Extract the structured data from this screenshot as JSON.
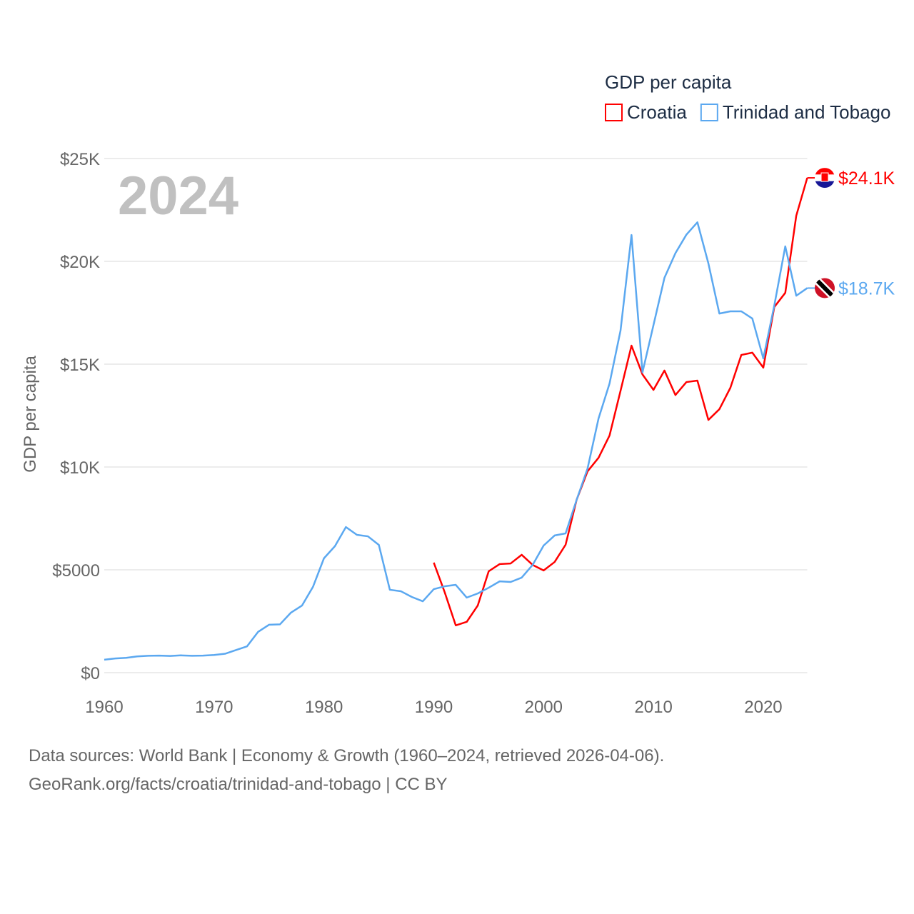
{
  "chart_data": {
    "type": "line",
    "title": "GDP per capita",
    "year_label": "2024",
    "ylabel": "GDP per capita",
    "xlabel": "",
    "xlim": [
      1960,
      2024
    ],
    "ylim": [
      0,
      25000
    ],
    "x_ticks": [
      1960,
      1970,
      1980,
      1990,
      2000,
      2010,
      2020
    ],
    "x_tick_labels": [
      "1960",
      "1970",
      "1980",
      "1990",
      "2000",
      "2010",
      "2020"
    ],
    "y_ticks": [
      0,
      5000,
      10000,
      15000,
      20000,
      25000
    ],
    "y_tick_labels": [
      "$0",
      "$5000",
      "$10K",
      "$15K",
      "$20K",
      "$25K"
    ],
    "grid": true,
    "legend_position": "top-right",
    "series": [
      {
        "name": "Croatia",
        "color": "#ff0000",
        "end_label": "$24.1K",
        "flag": "croatia-flag",
        "start_year": 1990,
        "values": [
          5350,
          3900,
          2300,
          2470,
          3260,
          4930,
          5280,
          5310,
          5730,
          5240,
          4970,
          5380,
          6220,
          8400,
          9790,
          10450,
          11530,
          13700,
          15900,
          14500,
          13750,
          14690,
          13500,
          14130,
          14200,
          12290,
          12810,
          13850,
          15450,
          15560,
          14830,
          17780,
          18470,
          22220,
          24060
        ]
      },
      {
        "name": "Trinidad and Tobago",
        "color": "#5ba8f0",
        "end_label": "$18.7K",
        "flag": "trinidad-flag",
        "start_year": 1960,
        "values": [
          630,
          690,
          720,
          790,
          820,
          830,
          810,
          840,
          820,
          830,
          860,
          920,
          1100,
          1280,
          1980,
          2330,
          2350,
          2920,
          3260,
          4170,
          5560,
          6150,
          7080,
          6700,
          6630,
          6210,
          4030,
          3960,
          3680,
          3470,
          4060,
          4200,
          4270,
          3650,
          3850,
          4130,
          4440,
          4410,
          4620,
          5240,
          6180,
          6670,
          6770,
          8400,
          9930,
          12360,
          14060,
          16630,
          21280,
          14600,
          16900,
          19200,
          20400,
          21300,
          21900,
          19900,
          17460,
          17570,
          17570,
          17220,
          15280,
          17850,
          20730,
          18330,
          18700
        ]
      }
    ]
  },
  "footer": {
    "line1": "Data sources: World Bank | Economy & Growth (1960–2024, retrieved 2026-04-06).",
    "line2": "GeoRank.org/facts/croatia/trinidad-and-tobago | CC BY"
  }
}
